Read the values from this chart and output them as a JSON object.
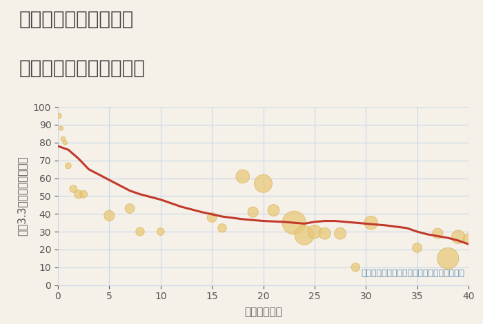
{
  "title_line1": "三重県四日市市午起の",
  "title_line2": "築年数別中古戸建て価格",
  "xlabel": "築年数（年）",
  "ylabel": "坪（3.3㎡）単価（万円）",
  "background_color": "#f5f0e8",
  "plot_bg_color": "#f5f0e8",
  "grid_color": "#c8d8e8",
  "annotation": "円の大きさは、取引のあった物件面積を示す",
  "xlim": [
    0,
    40
  ],
  "ylim": [
    0,
    100
  ],
  "xticks": [
    0,
    5,
    10,
    15,
    20,
    25,
    30,
    35,
    40
  ],
  "yticks": [
    0,
    10,
    20,
    30,
    40,
    50,
    60,
    70,
    80,
    90,
    100
  ],
  "bubble_x": [
    0.1,
    0.3,
    0.5,
    0.7,
    1.0,
    1.5,
    2.0,
    2.5,
    5.0,
    7.0,
    8.0,
    10.0,
    15.0,
    16.0,
    18.0,
    19.0,
    20.0,
    21.0,
    23.0,
    24.0,
    25.0,
    26.0,
    27.5,
    29.0,
    30.5,
    35.0,
    37.0,
    38.0,
    39.0,
    40.0
  ],
  "bubble_y": [
    95.0,
    88.0,
    82.0,
    80.0,
    67.0,
    54.0,
    51.0,
    51.0,
    39.0,
    43.0,
    30.0,
    30.0,
    38.0,
    32.0,
    61.0,
    41.0,
    57.0,
    42.0,
    35.0,
    28.0,
    30.0,
    29.0,
    29.0,
    10.0,
    35.0,
    21.0,
    29.0,
    15.0,
    27.0,
    26.0
  ],
  "bubble_size": [
    30,
    20,
    25,
    20,
    40,
    60,
    80,
    60,
    120,
    100,
    80,
    60,
    100,
    80,
    200,
    120,
    350,
    150,
    600,
    400,
    200,
    150,
    150,
    80,
    200,
    100,
    120,
    500,
    200,
    120
  ],
  "bubble_color": "#e8c87a",
  "bubble_edge_color": "#d4a840",
  "bubble_alpha": 0.75,
  "line_x": [
    0.0,
    0.5,
    1.0,
    2.0,
    3.0,
    4.0,
    5.0,
    6.0,
    7.0,
    8.0,
    9.0,
    10.0,
    12.0,
    14.0,
    16.0,
    18.0,
    20.0,
    22.0,
    23.0,
    24.0,
    25.0,
    26.0,
    27.0,
    28.0,
    30.0,
    32.0,
    34.0,
    35.0,
    36.0,
    37.0,
    38.0,
    39.0,
    40.0
  ],
  "line_y": [
    78.0,
    77.0,
    76.0,
    71.0,
    65.0,
    62.0,
    59.0,
    56.0,
    53.0,
    51.0,
    49.5,
    48.0,
    44.0,
    41.0,
    38.5,
    37.0,
    36.0,
    35.5,
    35.0,
    34.5,
    35.5,
    36.0,
    36.0,
    35.5,
    34.5,
    33.5,
    32.0,
    30.0,
    28.5,
    27.5,
    26.5,
    25.0,
    23.0
  ],
  "line_color": "#c0392b",
  "line_width": 2.2,
  "title_color": "#444444",
  "axis_label_color": "#555555",
  "tick_label_color": "#555555",
  "annotation_color": "#5b8db8",
  "title_fontsize": 20,
  "axis_label_fontsize": 11,
  "tick_fontsize": 10,
  "annotation_fontsize": 9
}
